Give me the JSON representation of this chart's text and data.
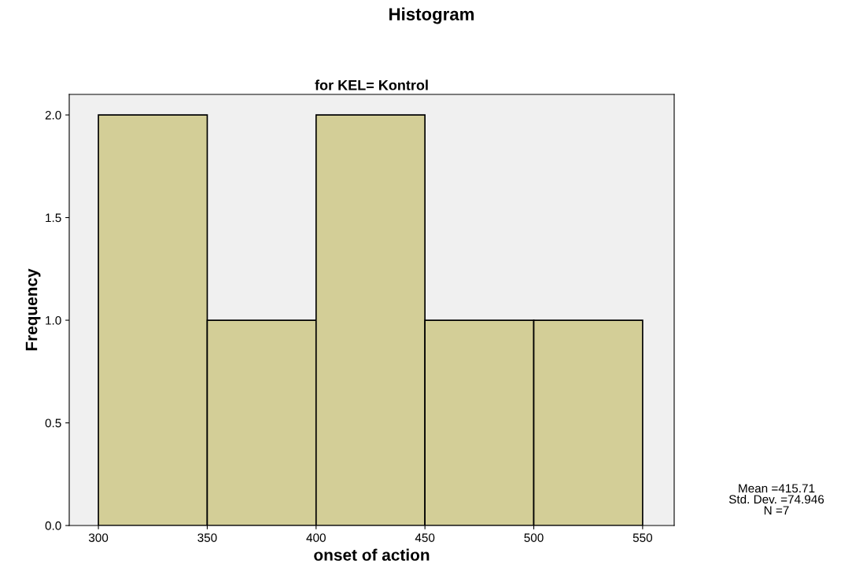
{
  "chart_data": {
    "type": "histogram",
    "title": "Histogram",
    "subtitle": "for KEL= Kontrol",
    "xlabel": "onset of action",
    "ylabel": "Frequency",
    "bins": [
      300,
      350,
      400,
      450,
      500,
      550
    ],
    "values": [
      2,
      1,
      2,
      1,
      1
    ],
    "color": "#d3ce97",
    "xlim": [
      286.6,
      564.5
    ],
    "xticks": [
      300,
      350,
      400,
      450,
      500,
      550
    ],
    "ylim": [
      0,
      2.1
    ],
    "yticks": [
      {
        "value": 0,
        "label": "0.0"
      },
      {
        "value": 0.5,
        "label": "0.5"
      },
      {
        "value": 1,
        "label": "1.0"
      },
      {
        "value": 1.5,
        "label": "1.5"
      },
      {
        "value": 2,
        "label": "2.0"
      }
    ],
    "grid": false,
    "legend": false,
    "annotations": [
      "Mean =415.71",
      "Std. Dev. =74.946",
      "N =7"
    ]
  }
}
